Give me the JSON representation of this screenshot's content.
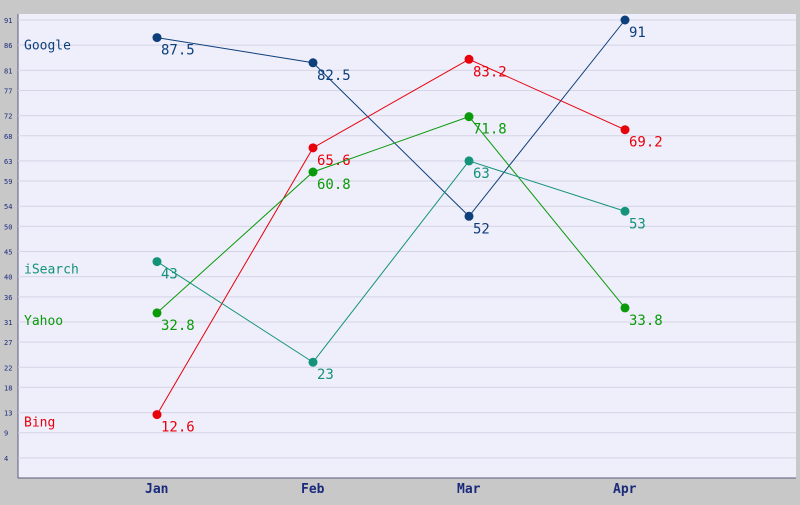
{
  "chart_data": {
    "type": "line",
    "categories": [
      "Jan",
      "Feb",
      "Mar",
      "Apr"
    ],
    "ylim": [
      0,
      91
    ],
    "yticks": [
      4,
      9,
      13,
      18,
      22,
      27,
      31,
      36,
      40,
      45,
      50,
      54,
      59,
      63,
      68,
      72,
      77,
      81,
      86,
      91
    ],
    "grid": true,
    "legend_placement": "left, each label at its series' first point",
    "series": [
      {
        "name": "Google",
        "color": "#0d3f7a",
        "values": [
          87.5,
          82.5,
          52,
          91
        ],
        "labels": [
          "87.5",
          "82.5",
          "52",
          "91"
        ]
      },
      {
        "name": "Bing",
        "color": "#e8000b",
        "values": [
          12.6,
          65.6,
          83.2,
          69.2
        ],
        "labels": [
          "12.6",
          "65.6",
          "83.2",
          "69.2"
        ]
      },
      {
        "name": "Yahoo",
        "color": "#0a9a0a",
        "values": [
          32.8,
          60.8,
          71.8,
          33.8
        ],
        "labels": [
          "32.8",
          "60.8",
          "71.8",
          "33.8"
        ]
      },
      {
        "name": "iSearch",
        "color": "#13937a",
        "values": [
          43,
          23,
          63,
          53
        ],
        "labels": [
          "43",
          "23",
          "63",
          "53"
        ]
      }
    ]
  }
}
